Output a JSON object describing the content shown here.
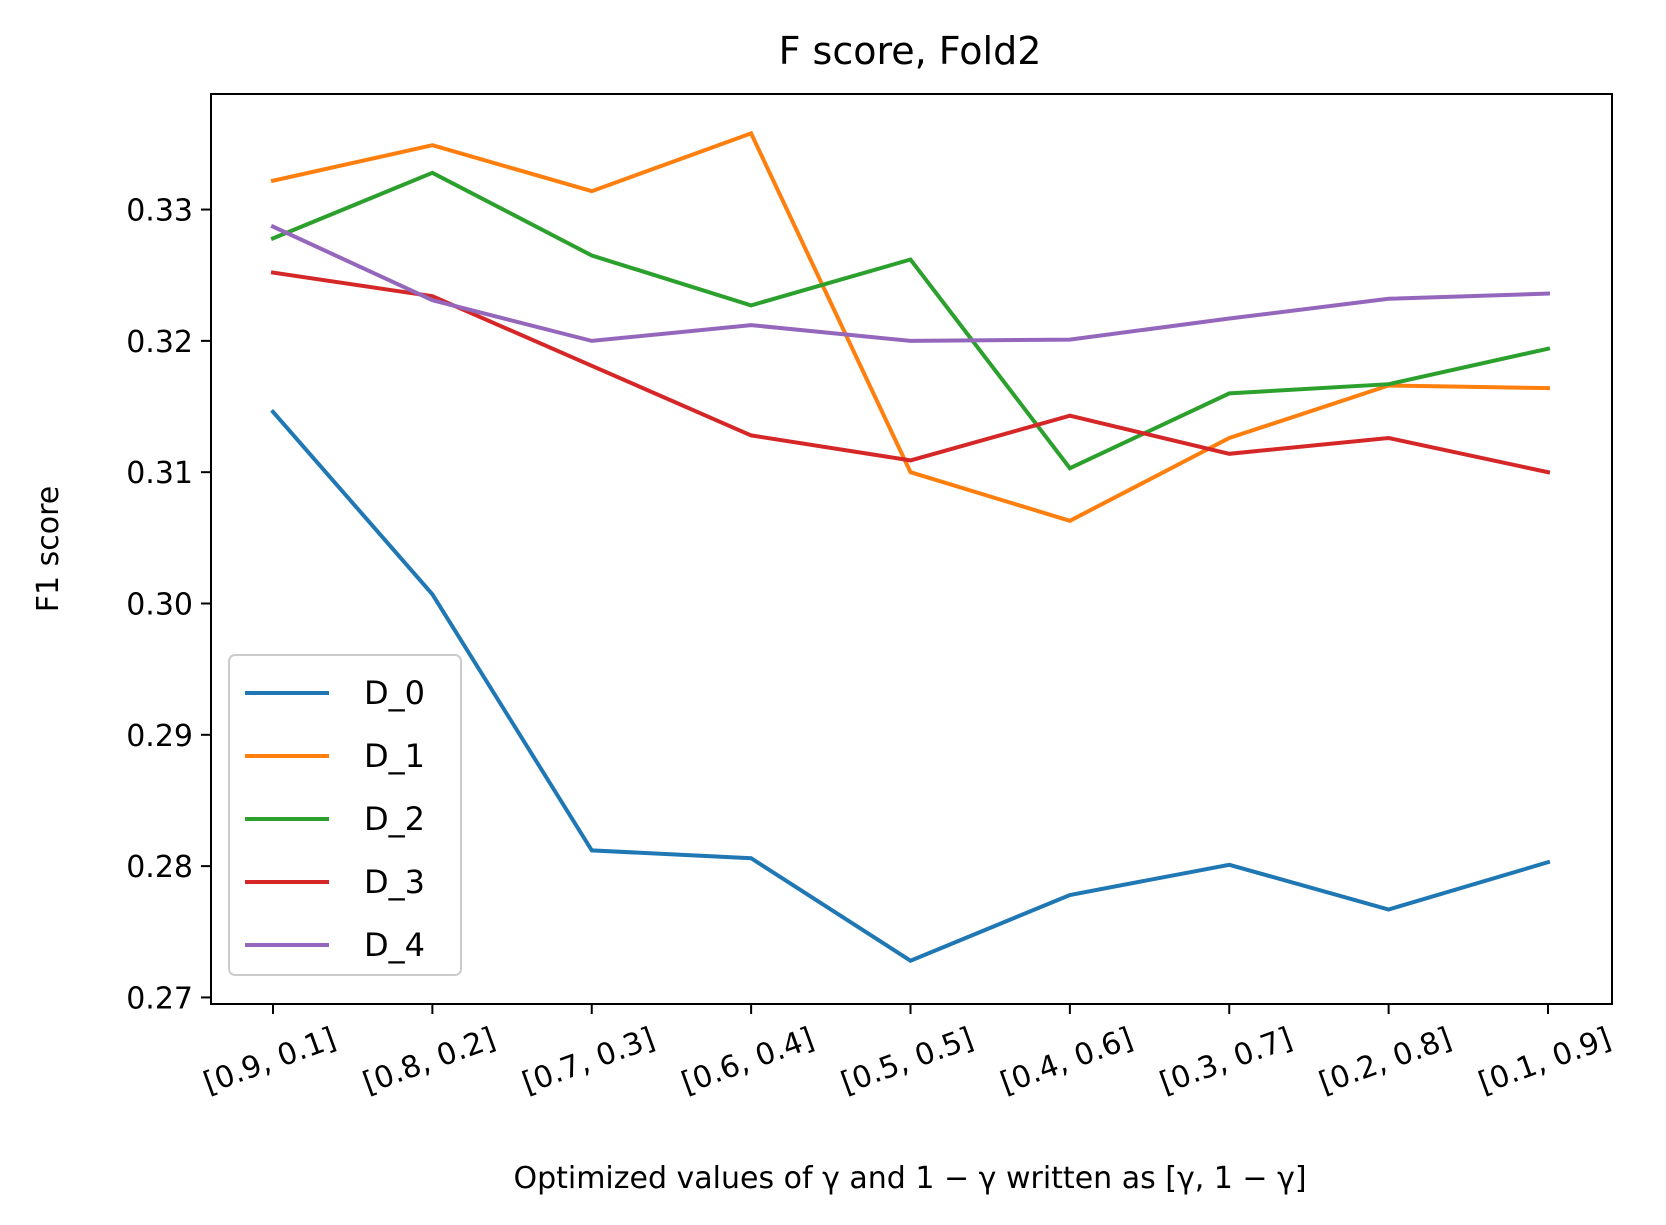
{
  "chart_data": {
    "type": "line",
    "title": "F score, Fold2",
    "xlabel": "Optimized values of γ and 1 − γ written as [γ, 1 − γ]",
    "ylabel": "F1 score",
    "categories": [
      "[0.9, 0.1]",
      "[0.8, 0.2]",
      "[0.7, 0.3]",
      "[0.6, 0.4]",
      "[0.5, 0.5]",
      "[0.4, 0.6]",
      "[0.3, 0.7]",
      "[0.2, 0.8]",
      "[0.1, 0.9]"
    ],
    "ylim": [
      0.2695,
      0.3388
    ],
    "yticks": [
      0.27,
      0.28,
      0.29,
      0.3,
      0.31,
      0.32,
      0.33
    ],
    "ytick_labels": [
      "0.27",
      "0.28",
      "0.29",
      "0.30",
      "0.31",
      "0.32",
      "0.33"
    ],
    "grid": false,
    "legend_position": "lower-left",
    "series": [
      {
        "name": "D_0",
        "color": "#1f77b4",
        "values": [
          0.3146,
          0.3007,
          0.2812,
          0.2806,
          0.2728,
          0.2778,
          0.2801,
          0.2767,
          0.2803
        ]
      },
      {
        "name": "D_1",
        "color": "#ff7f0e",
        "values": [
          0.3322,
          0.3349,
          0.3314,
          0.3358,
          0.31,
          0.3063,
          0.3126,
          0.3166,
          0.3164
        ]
      },
      {
        "name": "D_2",
        "color": "#2ca02c",
        "values": [
          0.3278,
          0.3328,
          0.3265,
          0.3227,
          0.3262,
          0.3103,
          0.316,
          0.3167,
          0.3194
        ]
      },
      {
        "name": "D_3",
        "color": "#d62728",
        "values": [
          0.3252,
          0.3234,
          0.3181,
          0.3128,
          0.3109,
          0.3143,
          0.3114,
          0.3126,
          0.31
        ]
      },
      {
        "name": "D_4",
        "color": "#9467bd",
        "values": [
          0.3287,
          0.3231,
          0.32,
          0.3212,
          0.32,
          0.3201,
          0.3217,
          0.3232,
          0.3236
        ]
      }
    ]
  }
}
